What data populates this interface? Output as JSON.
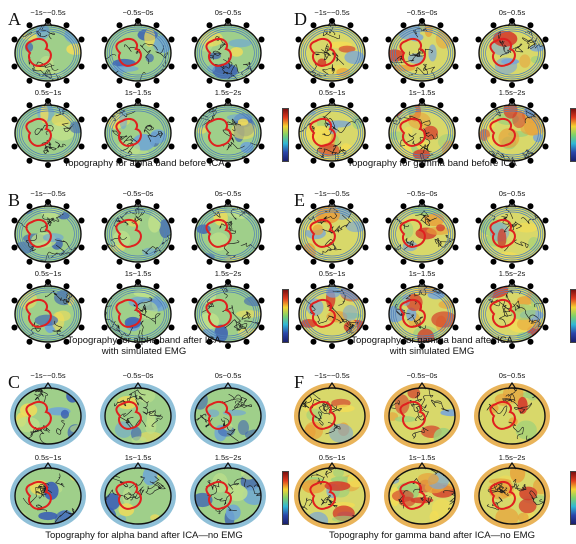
{
  "panels": [
    {
      "letter": "A",
      "caption": [
        "Topography for alpha band before ICA"
      ],
      "time_labels": [
        "−1s~−0.5s",
        "−0.5s~0s",
        "0s~0.5s",
        "0.5s~1s",
        "1s~1.5s",
        "1.5s~2s"
      ],
      "palette": "alpha",
      "style": "electrode"
    },
    {
      "letter": "D",
      "caption": [
        "Topography for gamma band before ICA"
      ],
      "time_labels": [
        "−1s~−0.5s",
        "−0.5s~0s",
        "0s~0.5s",
        "0.5s~1s",
        "1s~1.5s",
        "1.5s~2s"
      ],
      "palette": "gamma",
      "style": "electrode"
    },
    {
      "letter": "B",
      "caption": [
        "Topography for alpha band after ICA",
        "with simulated EMG"
      ],
      "time_labels": [
        "−1s~−0.5s",
        "−0.5s~0s",
        "0s~0.5s",
        "0.5s~1s",
        "1s~1.5s",
        "1.5s~2s"
      ],
      "palette": "alpha",
      "style": "electrode"
    },
    {
      "letter": "E",
      "caption": [
        "Topography for gamma band after ICA",
        "with simulated EMG"
      ],
      "time_labels": [
        "−1s~−0.5s",
        "−0.5s~0s",
        "0s~0.5s",
        "0.5s~1s",
        "1s~1.5s",
        "1.5s~2s"
      ],
      "palette": "gamma",
      "style": "electrode"
    },
    {
      "letter": "C",
      "caption": [
        "Topography for alpha band after ICA—no EMG"
      ],
      "time_labels": [
        "−1s~−0.5s",
        "−0.5s~0s",
        "0s~0.5s",
        "0.5s~1s",
        "1s~1.5s",
        "1.5s~2s"
      ],
      "palette": "alpha",
      "style": "plain"
    },
    {
      "letter": "F",
      "caption": [
        "Topography for gamma band after ICA—no EMG"
      ],
      "time_labels": [
        "−1s~−0.5s",
        "−0.5s~0s",
        "0s~0.5s",
        "0.5s~1s",
        "1s~1.5s",
        "1.5s~2s"
      ],
      "palette": "gamma",
      "style": "plain"
    }
  ],
  "colors": {
    "roi_outline": "#e0201f",
    "head_outline": "#111111",
    "alpha_base": "#9fcf8a",
    "gamma_base": "#d8d86a",
    "cool": "#3a5fb5",
    "warm": "#e8a13a",
    "hot": "#d43a2a",
    "colorbar": [
      "#7a0f0f",
      "#e03a1e",
      "#f5d431",
      "#7fd16a",
      "#2fb6d6",
      "#2a45a8",
      "#1a1f6b"
    ]
  }
}
